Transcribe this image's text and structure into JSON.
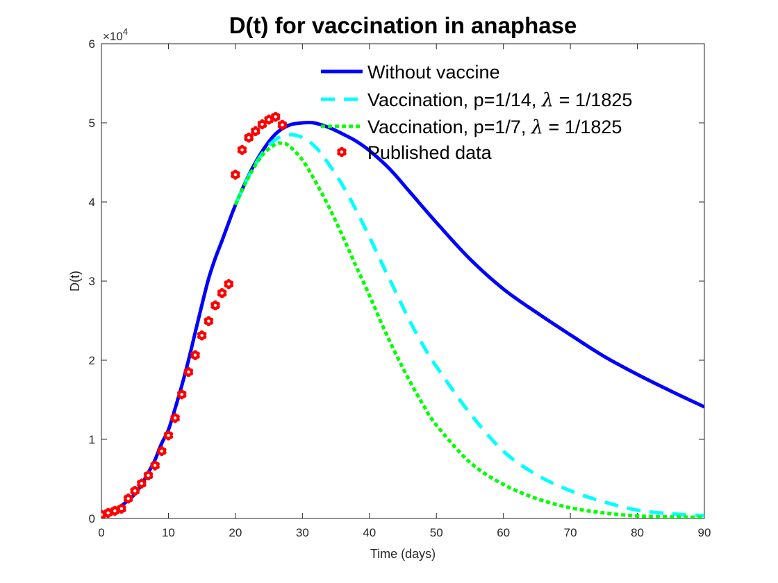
{
  "chart_data": {
    "type": "line",
    "title": "D(t) for vaccination in anaphase",
    "xlabel": "Time (days)",
    "ylabel": "D(t)",
    "xlim": [
      0,
      90
    ],
    "ylim": [
      0,
      60000
    ],
    "y_exponent_label": "×10",
    "y_exponent_power": "4",
    "xticks": [
      0,
      10,
      20,
      30,
      40,
      50,
      60,
      70,
      80,
      90
    ],
    "xtick_labels": [
      "0",
      "10",
      "20",
      "30",
      "40",
      "50",
      "60",
      "70",
      "80",
      "90"
    ],
    "yticks": [
      0,
      10000,
      20000,
      30000,
      40000,
      50000,
      60000
    ],
    "ytick_labels": [
      "0",
      "1",
      "2",
      "3",
      "4",
      "5",
      "6"
    ],
    "grid": false,
    "legend_position": "top-right",
    "series": [
      {
        "name": "Without vaccine",
        "legend_label": "Without vaccine",
        "color": "#0000ff",
        "style": "solid",
        "x": [
          0,
          1,
          2,
          3,
          4,
          5,
          6,
          7,
          8,
          9,
          10,
          11,
          12,
          13,
          14,
          15,
          16,
          17,
          18,
          19,
          20,
          22,
          24,
          26,
          28,
          30,
          31,
          32,
          34,
          36,
          38,
          40,
          43,
          46,
          50,
          55,
          60,
          65,
          70,
          75,
          80,
          85,
          90
        ],
        "y": [
          330,
          700,
          1100,
          1600,
          2300,
          3100,
          4300,
          5800,
          7400,
          9500,
          11200,
          13900,
          16800,
          20000,
          23500,
          27000,
          30300,
          32900,
          35100,
          37400,
          39600,
          43400,
          46400,
          48600,
          49700,
          50000,
          50030,
          49950,
          49400,
          48600,
          47700,
          46500,
          44200,
          41300,
          37400,
          32800,
          29000,
          26000,
          23200,
          20500,
          18200,
          16100,
          14100
        ]
      },
      {
        "name": "Vaccination, p=1/14, λ = 1/1825",
        "legend_label_prefix": "Vaccination, p=1/14, ",
        "legend_label_lambda": "λ",
        "legend_label_suffix": " = 1/1825",
        "color": "#00ffff",
        "style": "dashed",
        "x": [
          20,
          22,
          24,
          26,
          28,
          30,
          32,
          34,
          36,
          38,
          40,
          42,
          44,
          46,
          48,
          50,
          55,
          60,
          65,
          70,
          75,
          80,
          85,
          90
        ],
        "y": [
          39650,
          43300,
          46100,
          47900,
          48500,
          48150,
          46900,
          44700,
          42100,
          39000,
          35600,
          32000,
          28500,
          25000,
          21900,
          19200,
          13300,
          8500,
          5500,
          3500,
          2100,
          1050,
          600,
          350
        ]
      },
      {
        "name": "Vaccination, p=1/7, λ = 1/1825",
        "legend_label_prefix": "Vaccination, p=1/7, ",
        "legend_label_lambda": "λ",
        "legend_label_suffix": " = 1/1825",
        "color": "#00ff00",
        "style": "dotted",
        "x": [
          20,
          22,
          24,
          26,
          27,
          28,
          30,
          32,
          34,
          36,
          38,
          40,
          42,
          44,
          46,
          48,
          50,
          55,
          60,
          65,
          70,
          75,
          80,
          85,
          90
        ],
        "y": [
          39650,
          43200,
          45900,
          47300,
          47400,
          47100,
          45300,
          42500,
          39300,
          35700,
          31900,
          28200,
          24300,
          20700,
          17400,
          14400,
          11800,
          7100,
          4300,
          2500,
          1350,
          700,
          320,
          200,
          150
        ]
      },
      {
        "name": "Published data",
        "legend_label": "Published data",
        "color": "#ff0000",
        "style": "markers",
        "marker": "hexagram",
        "x": [
          0,
          1,
          2,
          3,
          4,
          5,
          6,
          7,
          8,
          9,
          10,
          11,
          12,
          13,
          14,
          15,
          16,
          17,
          18,
          19,
          20,
          21,
          22,
          23,
          24,
          25,
          26,
          27
        ],
        "y": [
          480,
          700,
          960,
          1230,
          2520,
          3480,
          4410,
          5440,
          6690,
          8510,
          10500,
          12690,
          15680,
          18510,
          20640,
          23130,
          24940,
          26930,
          28480,
          29620,
          43450,
          46580,
          48130,
          48950,
          49820,
          50410,
          50760,
          49740
        ]
      }
    ]
  }
}
